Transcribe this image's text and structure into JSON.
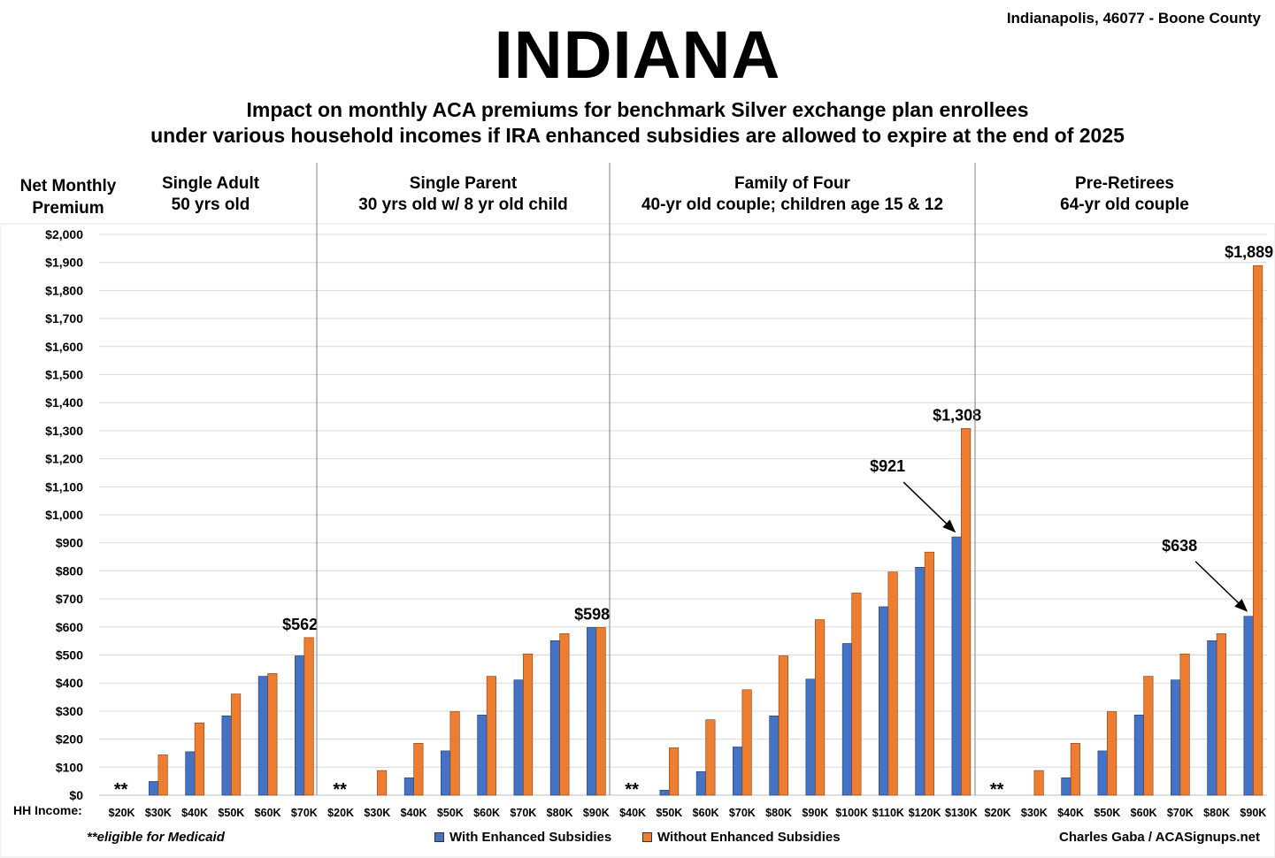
{
  "header": {
    "location": "Indianapolis, 46077 - Boone County",
    "title": "INDIANA",
    "subtitle_line1": "Impact on monthly ACA premiums for benchmark Silver exchange plan enrollees",
    "subtitle_line2": "under various household incomes if IRA enhanced subsidies are allowed to expire at the end of 2025"
  },
  "y_axis_title": [
    "Net Monthly",
    "Premium"
  ],
  "x_axis_prefix": "HH Income:",
  "footer": {
    "footnote": "**eligible for Medicaid",
    "credit": "Charles Gaba / ACASignups.net"
  },
  "colors": {
    "with": "#4472C4",
    "without": "#ED7D31",
    "grid": "#d9d9d9",
    "divider": "#7f7f7f"
  },
  "chart_data": {
    "type": "bar",
    "ylim": [
      0,
      2000
    ],
    "yticks": [
      "$0",
      "$100",
      "$200",
      "$300",
      "$400",
      "$500",
      "$600",
      "$700",
      "$800",
      "$900",
      "$1,000",
      "$1,100",
      "$1,200",
      "$1,300",
      "$1,400",
      "$1,500",
      "$1,600",
      "$1,700",
      "$1,800",
      "$1,900",
      "$2,000"
    ],
    "grid": true,
    "legend": {
      "position": "bottom",
      "entries": [
        {
          "name": "With Enhanced Subsidies",
          "color": "#4472C4"
        },
        {
          "name": "Without Enhanced Subsidies",
          "color": "#ED7D31"
        }
      ]
    },
    "medicaid_marker": "**",
    "panels": [
      {
        "title_line1": "Single Adult",
        "title_line2": "50 yrs old",
        "categories": [
          "$20K",
          "$30K",
          "$40K",
          "$50K",
          "$60K",
          "$70K"
        ],
        "with": [
          0,
          49,
          155,
          283,
          424,
          497
        ],
        "without": [
          0,
          144,
          258,
          361,
          434,
          562
        ],
        "medicaid": [
          true,
          false,
          false,
          false,
          false,
          false
        ],
        "annotations": [
          {
            "text": "$562",
            "series": "without",
            "index": 5
          }
        ]
      },
      {
        "title_line1": "Single Parent",
        "title_line2": "30 yrs old w/ 8 yr old child",
        "categories": [
          "$20K",
          "$30K",
          "$40K",
          "$50K",
          "$60K",
          "$70K",
          "$80K",
          "$90K"
        ],
        "with": [
          0,
          0,
          62,
          158,
          286,
          411,
          551,
          598
        ],
        "without": [
          0,
          88,
          185,
          298,
          424,
          504,
          576,
          598
        ],
        "medicaid": [
          true,
          false,
          false,
          false,
          false,
          false,
          false,
          false
        ],
        "annotations": [
          {
            "text": "$598",
            "series": "without",
            "index": 7
          }
        ]
      },
      {
        "title_line1": "Family of Four",
        "title_line2": "40-yr old couple; children age 15 & 12",
        "categories": [
          "$40K",
          "$50K",
          "$60K",
          "$70K",
          "$80K",
          "$90K",
          "$100K",
          "$110K",
          "$120K",
          "$130K"
        ],
        "with": [
          0,
          18,
          84,
          172,
          283,
          414,
          541,
          672,
          813,
          921
        ],
        "without": [
          0,
          169,
          269,
          376,
          497,
          626,
          721,
          796,
          867,
          1308
        ],
        "medicaid": [
          true,
          false,
          false,
          false,
          false,
          false,
          false,
          false,
          false,
          false
        ],
        "annotations": [
          {
            "text": "$1,308",
            "series": "without",
            "index": 9
          },
          {
            "text": "$921",
            "series": "with",
            "index": 9,
            "arrow": true
          }
        ]
      },
      {
        "title_line1": "Pre-Retirees",
        "title_line2": "64-yr old couple",
        "categories": [
          "$20K",
          "$30K",
          "$40K",
          "$50K",
          "$60K",
          "$70K",
          "$80K",
          "$90K"
        ],
        "with": [
          0,
          0,
          62,
          158,
          286,
          411,
          551,
          638
        ],
        "without": [
          0,
          88,
          185,
          298,
          424,
          504,
          576,
          1889
        ],
        "medicaid": [
          true,
          false,
          false,
          false,
          false,
          false,
          false,
          false
        ],
        "annotations": [
          {
            "text": "$1,889",
            "series": "without",
            "index": 7
          },
          {
            "text": "$638",
            "series": "with",
            "index": 7,
            "arrow": true
          }
        ]
      }
    ]
  }
}
